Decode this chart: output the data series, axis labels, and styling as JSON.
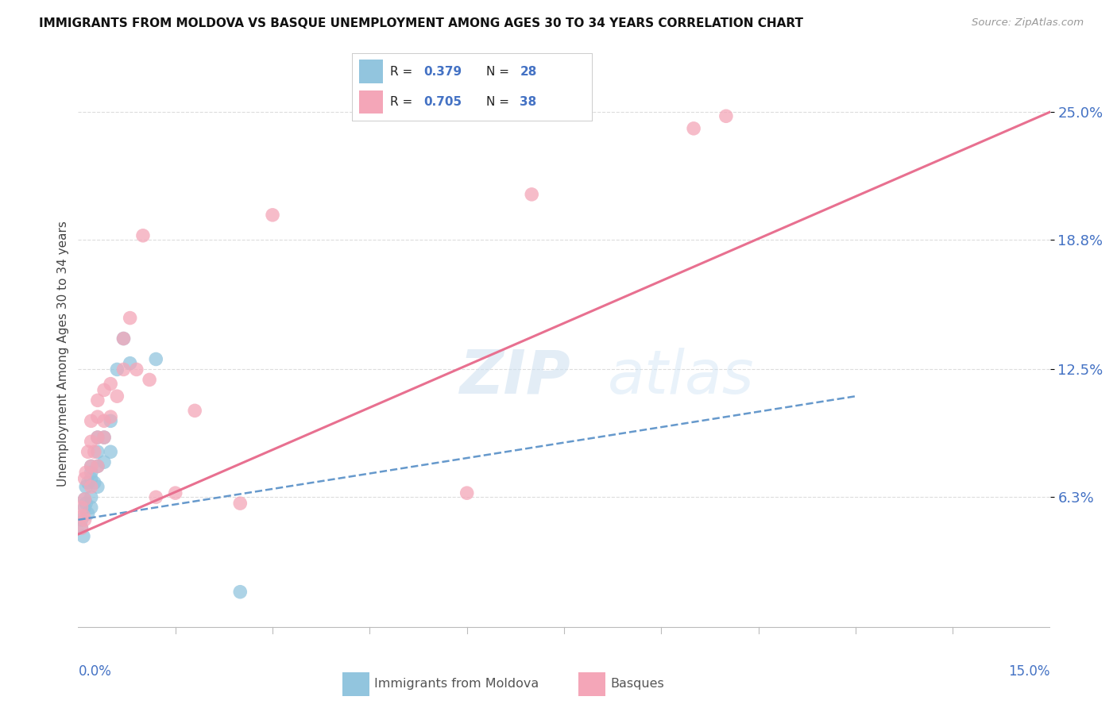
{
  "title": "IMMIGRANTS FROM MOLDOVA VS BASQUE UNEMPLOYMENT AMONG AGES 30 TO 34 YEARS CORRELATION CHART",
  "source": "Source: ZipAtlas.com",
  "ylabel": "Unemployment Among Ages 30 to 34 years",
  "color_blue": "#92c5de",
  "color_pink": "#f4a6b8",
  "color_blue_line": "#6699cc",
  "color_pink_line": "#e87090",
  "color_axis_label": "#4472c4",
  "color_grid": "#dddddd",
  "xlim": [
    0.0,
    0.15
  ],
  "ylim": [
    -0.005,
    0.27
  ],
  "ytick_vals": [
    0.063,
    0.125,
    0.188,
    0.25
  ],
  "ytick_labels": [
    "6.3%",
    "12.5%",
    "18.8%",
    "25.0%"
  ],
  "watermark_zip": "ZIP",
  "watermark_atlas": "atlas",
  "legend_R1": "0.379",
  "legend_N1": "28",
  "legend_R2": "0.705",
  "legend_N2": "38",
  "blue_x": [
    0.0005,
    0.0005,
    0.0008,
    0.001,
    0.001,
    0.0012,
    0.0012,
    0.0015,
    0.0015,
    0.002,
    0.002,
    0.002,
    0.002,
    0.002,
    0.0025,
    0.003,
    0.003,
    0.003,
    0.003,
    0.004,
    0.004,
    0.005,
    0.005,
    0.006,
    0.007,
    0.008,
    0.012,
    0.025
  ],
  "blue_y": [
    0.048,
    0.052,
    0.044,
    0.058,
    0.062,
    0.06,
    0.068,
    0.055,
    0.07,
    0.063,
    0.072,
    0.075,
    0.078,
    0.058,
    0.07,
    0.068,
    0.078,
    0.085,
    0.092,
    0.08,
    0.092,
    0.085,
    0.1,
    0.125,
    0.14,
    0.128,
    0.13,
    0.017
  ],
  "pink_x": [
    0.0005,
    0.0005,
    0.0008,
    0.001,
    0.001,
    0.001,
    0.0012,
    0.0015,
    0.002,
    0.002,
    0.002,
    0.002,
    0.0025,
    0.003,
    0.003,
    0.003,
    0.003,
    0.004,
    0.004,
    0.004,
    0.005,
    0.005,
    0.006,
    0.007,
    0.007,
    0.008,
    0.009,
    0.01,
    0.011,
    0.012,
    0.015,
    0.018,
    0.025,
    0.03,
    0.06,
    0.07,
    0.095,
    0.1
  ],
  "pink_y": [
    0.048,
    0.058,
    0.054,
    0.052,
    0.062,
    0.072,
    0.075,
    0.085,
    0.068,
    0.078,
    0.09,
    0.1,
    0.085,
    0.078,
    0.092,
    0.102,
    0.11,
    0.092,
    0.1,
    0.115,
    0.102,
    0.118,
    0.112,
    0.125,
    0.14,
    0.15,
    0.125,
    0.19,
    0.12,
    0.063,
    0.065,
    0.105,
    0.06,
    0.2,
    0.065,
    0.21,
    0.242,
    0.248
  ],
  "blue_line_x0": 0.0,
  "blue_line_y0": 0.052,
  "blue_line_x1": 0.12,
  "blue_line_y1": 0.112,
  "pink_line_x0": 0.0,
  "pink_line_y0": 0.045,
  "pink_line_x1": 0.15,
  "pink_line_y1": 0.25
}
